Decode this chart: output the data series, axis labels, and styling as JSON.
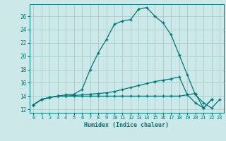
{
  "xlabel": "Humidex (Indice chaleur)",
  "bg_color": "#cce8e8",
  "grid_color": "#aad0d0",
  "line_color": "#007878",
  "xlim": [
    -0.5,
    23.5
  ],
  "ylim": [
    11.5,
    27.8
  ],
  "xticks": [
    0,
    1,
    2,
    3,
    4,
    5,
    6,
    7,
    8,
    9,
    10,
    11,
    12,
    13,
    14,
    15,
    16,
    17,
    18,
    19,
    20,
    21,
    22,
    23
  ],
  "yticks": [
    12,
    14,
    16,
    18,
    20,
    22,
    24,
    26
  ],
  "line1_x": [
    0,
    1,
    2,
    3,
    4,
    5,
    6,
    7,
    8,
    9,
    10,
    11,
    12,
    13,
    14,
    15,
    16,
    17,
    18,
    19,
    20,
    21,
    22,
    23
  ],
  "line1_y": [
    12.7,
    13.5,
    13.8,
    14.0,
    14.2,
    14.3,
    15.0,
    18.0,
    20.5,
    22.5,
    24.8,
    25.3,
    25.5,
    27.1,
    27.3,
    26.0,
    25.0,
    23.2,
    20.2,
    17.2,
    14.2,
    13.0,
    12.2,
    13.5
  ],
  "line2_x": [
    0,
    1,
    2,
    3,
    4,
    5,
    6,
    7,
    8,
    9,
    10,
    11,
    12,
    13,
    14,
    15,
    16,
    17,
    18,
    19,
    20,
    21,
    22,
    23
  ],
  "line2_y": [
    12.7,
    13.5,
    13.8,
    14.0,
    14.0,
    14.1,
    14.2,
    14.3,
    14.4,
    14.5,
    14.7,
    15.0,
    15.3,
    15.6,
    15.9,
    16.2,
    16.4,
    16.6,
    16.9,
    14.2,
    13.0,
    12.2,
    13.5,
    null
  ],
  "line3_x": [
    0,
    1,
    2,
    3,
    4,
    5,
    6,
    7,
    8,
    9,
    10,
    11,
    12,
    13,
    14,
    15,
    16,
    17,
    18,
    19,
    20,
    21,
    22,
    23
  ],
  "line3_y": [
    12.7,
    13.5,
    13.8,
    14.0,
    14.0,
    14.0,
    14.0,
    14.0,
    14.0,
    14.0,
    14.0,
    14.0,
    14.0,
    14.0,
    14.0,
    14.0,
    14.0,
    14.0,
    14.0,
    14.2,
    14.4,
    12.2,
    13.5,
    null
  ]
}
